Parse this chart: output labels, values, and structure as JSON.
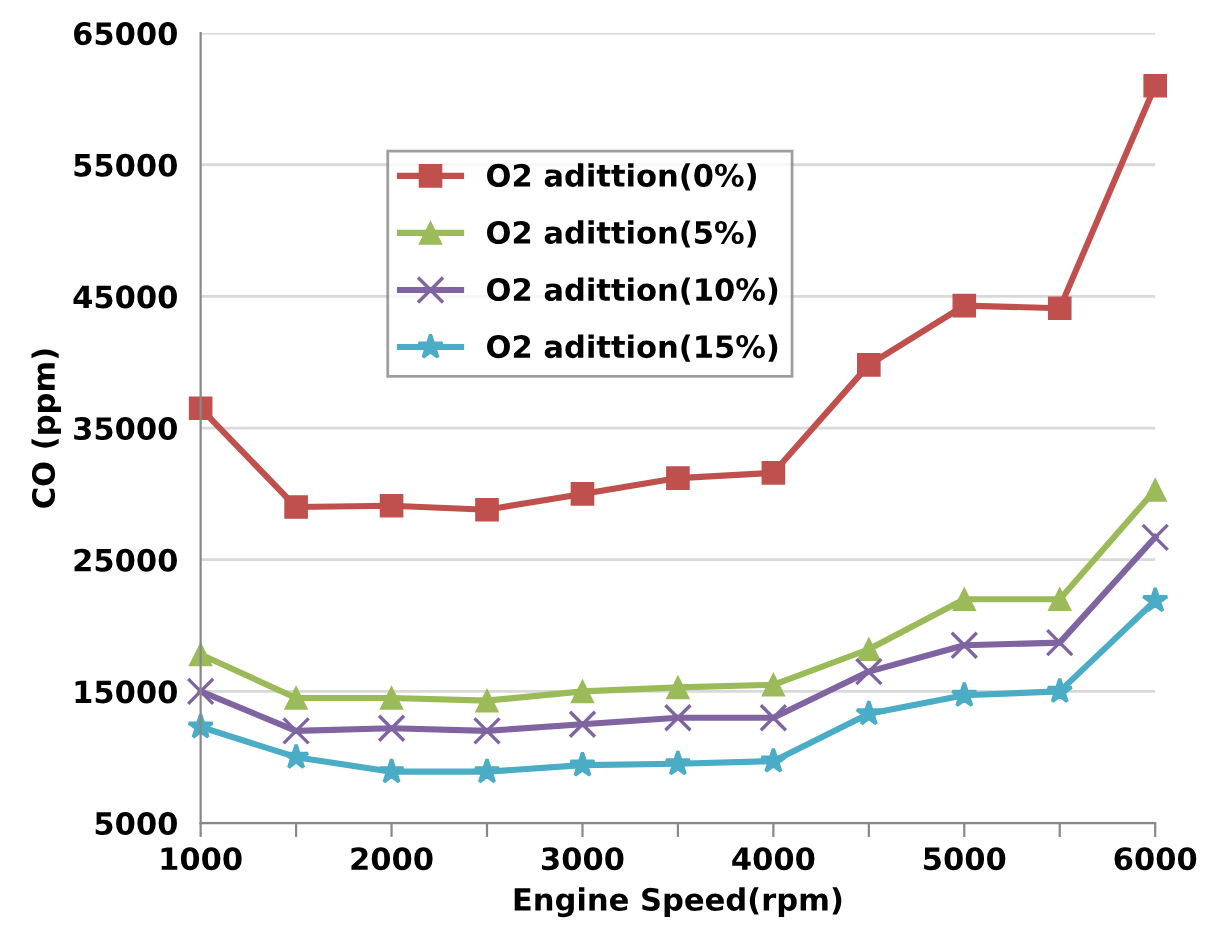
{
  "chart_data": {
    "type": "line",
    "xlabel": "Engine Speed(rpm)",
    "ylabel": "CO (ppm)",
    "x": [
      1000,
      1500,
      2000,
      2500,
      3000,
      3500,
      4000,
      4500,
      5000,
      5500,
      6000
    ],
    "series": [
      {
        "name": "O2 adittion(0%)",
        "color": "#c0504d",
        "marker": "square",
        "values": [
          36500,
          29000,
          29100,
          28800,
          30000,
          31200,
          31600,
          39800,
          44300,
          44100,
          61000
        ]
      },
      {
        "name": "O2 adittion(5%)",
        "color": "#9bbb59",
        "marker": "triangle",
        "values": [
          17800,
          14500,
          14500,
          14300,
          15000,
          15300,
          15500,
          18200,
          22000,
          22000,
          30300
        ]
      },
      {
        "name": "O2 adittion(10%)",
        "color": "#8064a2",
        "marker": "cross",
        "values": [
          15000,
          12000,
          12200,
          12000,
          12500,
          13000,
          13000,
          16500,
          18500,
          18700,
          26700
        ]
      },
      {
        "name": "O2 adittion(15%)",
        "color": "#4bacc6",
        "marker": "star",
        "values": [
          12300,
          10000,
          8900,
          8900,
          9400,
          9500,
          9700,
          13300,
          14700,
          15000,
          21900
        ]
      }
    ],
    "xlim": [
      1000,
      6000
    ],
    "xticks": [
      1000,
      {
        "value": 1500,
        "label": null
      },
      2000,
      {
        "value": 2500,
        "label": null
      },
      3000,
      {
        "value": 3500,
        "label": null
      },
      4000,
      {
        "value": 4500,
        "label": null
      },
      5000,
      {
        "value": 5500,
        "label": null
      },
      6000
    ],
    "ylim": [
      5000,
      65000
    ],
    "yticks": [
      5000,
      15000,
      25000,
      35000,
      45000,
      55000,
      65000
    ],
    "grid": "y",
    "legend": "top left",
    "line_style": "solid"
  }
}
